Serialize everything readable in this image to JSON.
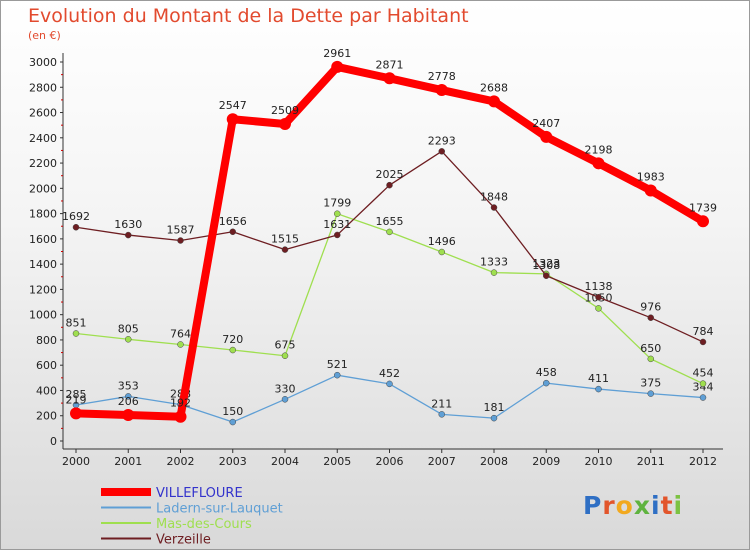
{
  "title": "Evolution du Montant de la Dette par Habitant",
  "unit": "(en €)",
  "logo_text": "Proxiti",
  "chart_data": {
    "type": "line",
    "title": "Evolution du Montant de la Dette par Habitant",
    "ylabel": "(en €)",
    "xlabel": "",
    "x": [
      "2000",
      "2001",
      "2002",
      "2003",
      "2004",
      "2005",
      "2006",
      "2007",
      "2008",
      "2009",
      "2010",
      "2011",
      "2012"
    ],
    "y_ticks": [
      "0",
      "200",
      "400",
      "600",
      "800",
      "1000",
      "1200",
      "1400",
      "1600",
      "1800",
      "2000",
      "2200",
      "2400",
      "2600",
      "2800",
      "3000"
    ],
    "ylim": [
      0,
      3000
    ],
    "grid": false,
    "legend_position": "bottom-left",
    "series": [
      {
        "name": "VILLEFLOURE",
        "color": "#ff0000",
        "label_color": "#3333cc",
        "emphasis": true,
        "values": [
          219,
          206,
          192,
          2547,
          2509,
          2961,
          2871,
          2778,
          2688,
          2407,
          2198,
          1983,
          1739
        ],
        "labels": [
          "219",
          "206",
          "192",
          "2547",
          "2509",
          "2961",
          "2871",
          "2778",
          "2688",
          "2407",
          "2198",
          "1983",
          "1739"
        ]
      },
      {
        "name": "Ladern-sur-Lauquet",
        "color": "#5f9fd5",
        "values": [
          285,
          353,
          288,
          150,
          330,
          521,
          452,
          211,
          181,
          458,
          411,
          375,
          344
        ],
        "labels": [
          "285",
          "353",
          "288",
          "150",
          "330",
          "521",
          "452",
          "211",
          "181",
          "458",
          "411",
          "375",
          "344"
        ]
      },
      {
        "name": "Mas-des-Cours",
        "color": "#9fdf4f",
        "values": [
          851,
          805,
          764,
          720,
          675,
          1799,
          1655,
          1496,
          1333,
          1323,
          1050,
          650,
          454
        ],
        "labels": [
          "851",
          "805",
          "764",
          "720",
          "675",
          "1799",
          "1655",
          "1496",
          "1333",
          "1323",
          "1050",
          "650",
          "454"
        ]
      },
      {
        "name": "Verzeille",
        "color": "#6e1e22",
        "values": [
          1692,
          1630,
          1587,
          1656,
          1515,
          1631,
          2025,
          2293,
          1848,
          1308,
          1138,
          976,
          784
        ],
        "labels": [
          "1692",
          "1630",
          "1587",
          "1656",
          "1515",
          "1631",
          "2025",
          "2293",
          "1848",
          "1308",
          "1138",
          "976",
          "784"
        ]
      }
    ]
  }
}
